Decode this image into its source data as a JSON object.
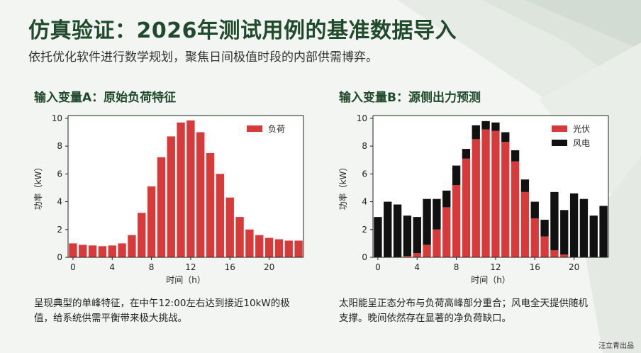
{
  "title": "仿真验证：2026年测试用例的基准数据导入",
  "subtitle": "依托优化软件进行数学规划，聚焦日间极值时段的内部供需博弈。",
  "left": {
    "section_title": "输入变量A：原始负荷特征",
    "description_line1": "呈现典型的单峰特征，在中午12:00左右达到接近10kW的极",
    "description_line2": "值，给系统供需平衡带来极大挑战。"
  },
  "right": {
    "section_title": "输入变量B：源侧出力预测",
    "description_line1": "太阳能呈正态分布与负荷高峰部分重合；风电全天提供随机",
    "description_line2": "支撑。晚间依然存在显著的净负荷缺口。"
  },
  "footer": "汪立青出品",
  "colors": {
    "bar_red": "#d63a3a",
    "bar_black": "#111111",
    "title_green": "#1f4a2c"
  },
  "chart_data": [
    {
      "type": "bar",
      "title": "输入变量A：原始负荷特征",
      "xlabel": "时间（h）",
      "ylabel": "功率（kW）",
      "x": [
        0,
        1,
        2,
        3,
        4,
        5,
        6,
        7,
        8,
        9,
        10,
        11,
        12,
        13,
        14,
        15,
        16,
        17,
        18,
        19,
        20,
        21,
        22,
        23
      ],
      "x_ticks": [
        "0",
        "4",
        "8",
        "12",
        "16",
        "20"
      ],
      "y_ticks": [
        "0",
        "2",
        "4",
        "6",
        "8",
        "10"
      ],
      "ylim": [
        0,
        10.2
      ],
      "legend": "top-right",
      "series": [
        {
          "name": "负荷",
          "color": "#d63a3a",
          "values": [
            1.0,
            0.9,
            0.85,
            0.8,
            0.85,
            1.0,
            1.6,
            3.2,
            5.1,
            7.2,
            8.7,
            9.7,
            9.85,
            9.0,
            7.5,
            6.0,
            4.3,
            2.9,
            2.0,
            1.6,
            1.4,
            1.3,
            1.2,
            1.2
          ]
        }
      ]
    },
    {
      "type": "bar",
      "stacked": true,
      "title": "输入变量B：源侧出力预测",
      "xlabel": "时间（h）",
      "ylabel": "功率（kW）",
      "x": [
        0,
        1,
        2,
        3,
        4,
        5,
        6,
        7,
        8,
        9,
        10,
        11,
        12,
        13,
        14,
        15,
        16,
        17,
        18,
        19,
        20,
        21,
        22,
        23
      ],
      "x_ticks": [
        "0",
        "4",
        "8",
        "12",
        "16",
        "20"
      ],
      "y_ticks": [
        "0",
        "2",
        "4",
        "6",
        "8",
        "10"
      ],
      "ylim": [
        0,
        10.2
      ],
      "legend": "top-right",
      "series": [
        {
          "name": "光伏",
          "color": "#d63a3a",
          "values": [
            0,
            0,
            0,
            0.1,
            0.3,
            0.9,
            2.0,
            3.6,
            5.2,
            7.1,
            8.5,
            9.2,
            9.1,
            8.3,
            6.9,
            4.7,
            2.8,
            1.5,
            0.5,
            0.2,
            0,
            0,
            0,
            0
          ]
        },
        {
          "name": "风电",
          "color": "#111111",
          "values": [
            2.9,
            4.0,
            3.8,
            2.9,
            2.6,
            3.3,
            2.2,
            1.2,
            1.4,
            0.7,
            1.0,
            0.6,
            0.6,
            0.7,
            0.8,
            0.9,
            1.2,
            1.2,
            4.2,
            3.2,
            4.6,
            4.2,
            3.0,
            3.7
          ]
        }
      ]
    }
  ]
}
